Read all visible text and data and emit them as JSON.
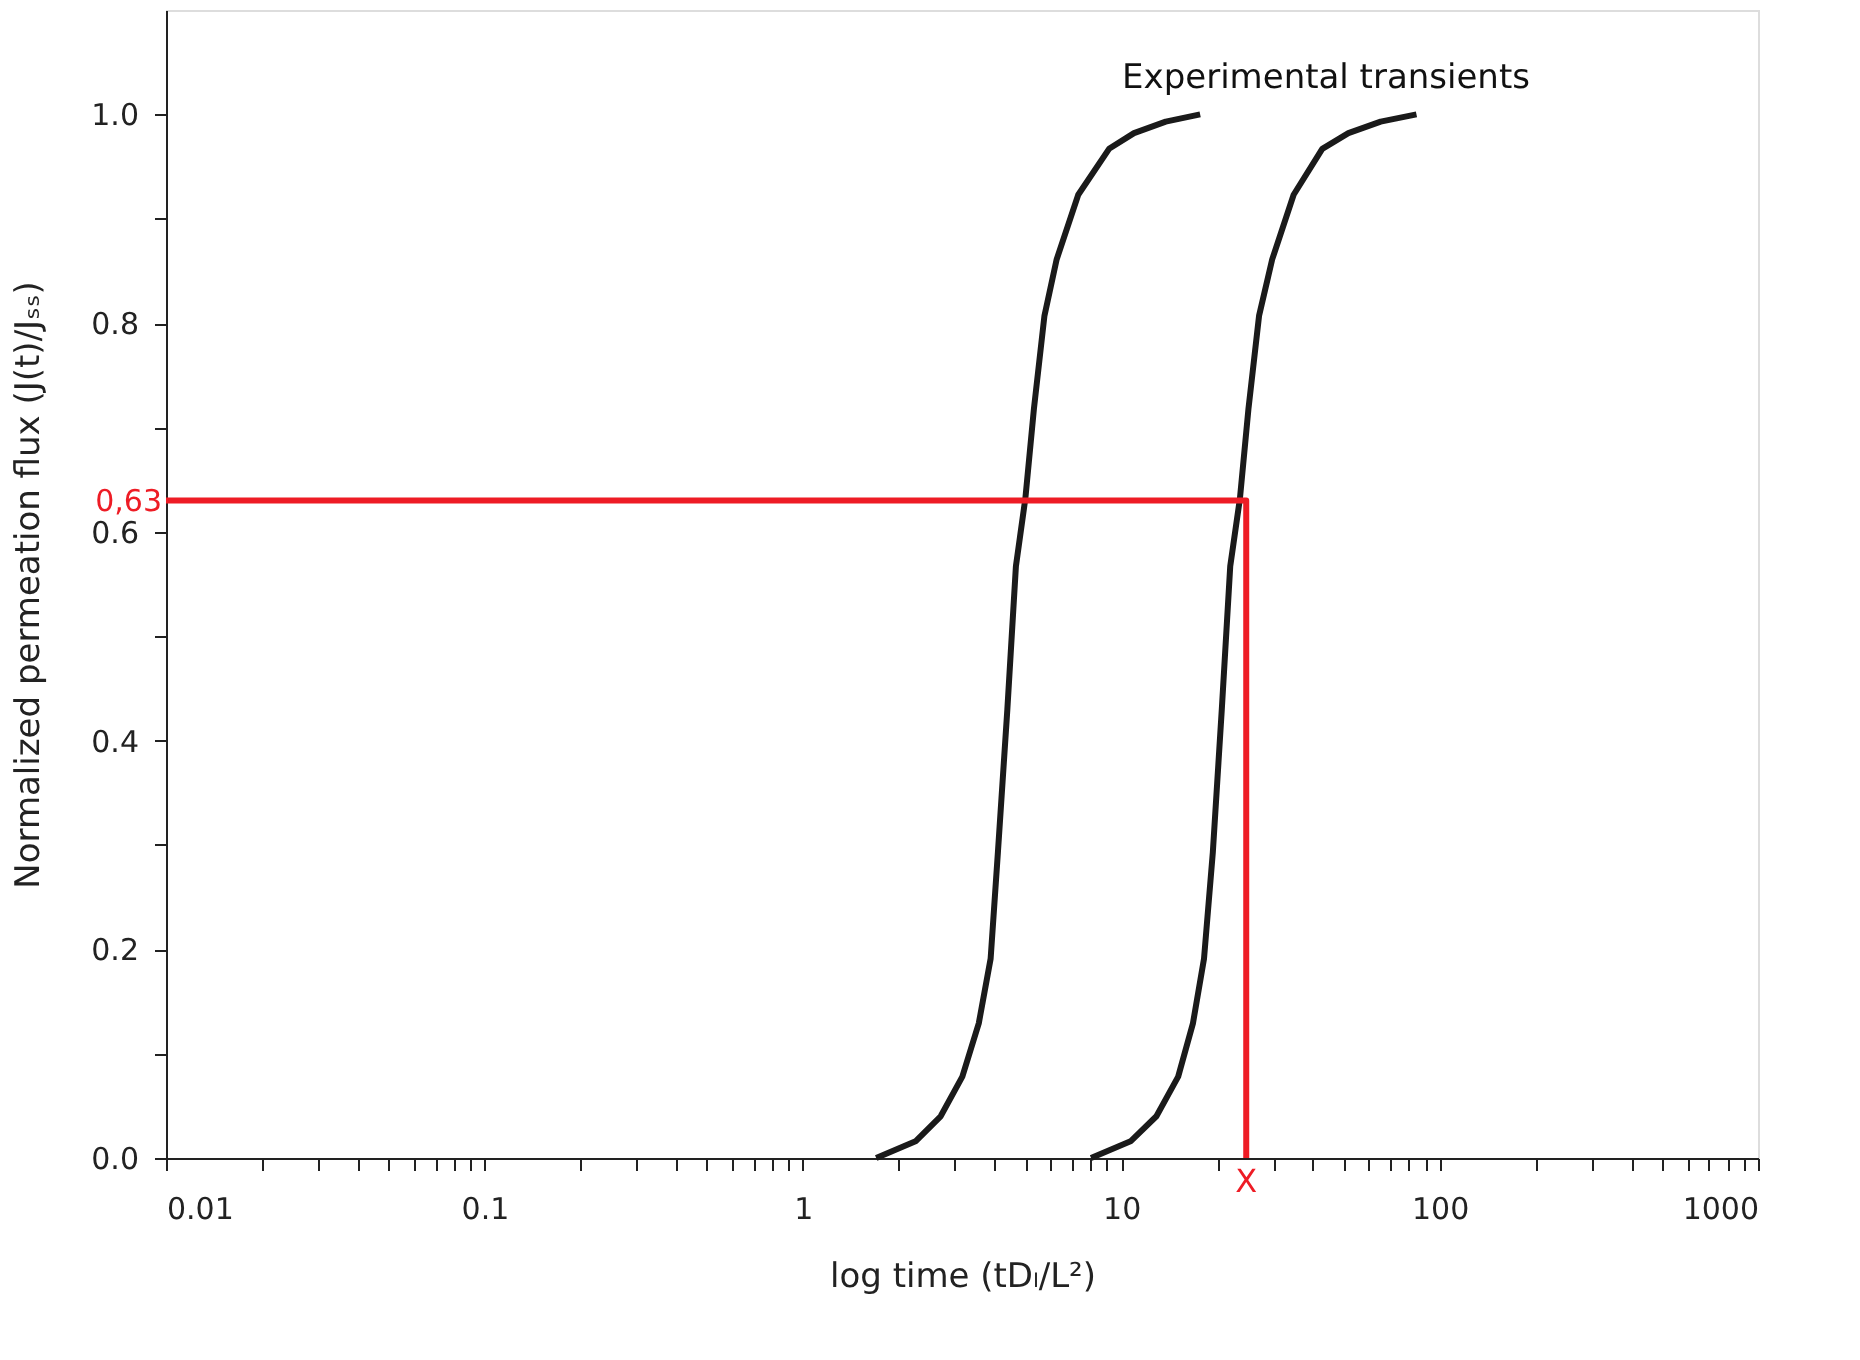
{
  "chart_data": {
    "type": "line",
    "xlabel": "log time (tDₗ/L²)",
    "ylabel": "Normalized permeation flux (J(t)/Jₛₛ)",
    "log": "x",
    "xlim": [
      0.01,
      1000
    ],
    "ylim": [
      0,
      1.1
    ],
    "xticks": [
      {
        "value": 0.01,
        "label": "0.01"
      },
      {
        "value": 0.02,
        "label": null
      },
      {
        "value": 0.03,
        "label": null
      },
      {
        "value": 0.04,
        "label": null
      },
      {
        "value": 0.05,
        "label": null
      },
      {
        "value": 0.06,
        "label": null
      },
      {
        "value": 0.07,
        "label": null
      },
      {
        "value": 0.08,
        "label": null
      },
      {
        "value": 0.09,
        "label": null
      },
      {
        "value": 0.1,
        "label": "0.1"
      },
      {
        "value": 0.2,
        "label": null
      },
      {
        "value": 0.3,
        "label": null
      },
      {
        "value": 0.4,
        "label": null
      },
      {
        "value": 0.5,
        "label": null
      },
      {
        "value": 0.6,
        "label": null
      },
      {
        "value": 0.7,
        "label": null
      },
      {
        "value": 0.8,
        "label": null
      },
      {
        "value": 0.9,
        "label": null
      },
      1,
      {
        "value": 2,
        "label": null
      },
      {
        "value": 3,
        "label": null
      },
      {
        "value": 4,
        "label": null
      },
      {
        "value": 5,
        "label": null
      },
      {
        "value": 6,
        "label": null
      },
      {
        "value": 7,
        "label": null
      },
      {
        "value": 8,
        "label": null
      },
      {
        "value": 9,
        "label": null
      },
      10,
      {
        "value": 20,
        "label": null
      },
      {
        "value": 30,
        "label": null
      },
      {
        "value": 40,
        "label": null
      },
      {
        "value": 50,
        "label": null
      },
      {
        "value": 60,
        "label": null
      },
      {
        "value": 70,
        "label": null
      },
      {
        "value": 80,
        "label": null
      },
      {
        "value": 90,
        "label": null
      },
      100,
      {
        "value": 200,
        "label": null
      },
      {
        "value": 300,
        "label": null
      },
      {
        "value": 400,
        "label": null
      },
      {
        "value": 500,
        "label": null
      },
      {
        "value": 600,
        "label": null
      },
      {
        "value": 700,
        "label": null
      },
      {
        "value": 800,
        "label": null
      },
      {
        "value": 900,
        "label": null
      },
      1000
    ],
    "yticks": [
      {
        "value": 0,
        "label": "0.0"
      },
      {
        "value": 0.1,
        "label": null
      },
      {
        "value": 0.2,
        "label": "0.2"
      },
      {
        "value": 0.3,
        "label": null
      },
      {
        "value": 0.4,
        "label": "0.4"
      },
      {
        "value": 0.5,
        "label": null
      },
      {
        "value": 0.6,
        "label": "0.6"
      },
      {
        "value": 0.7,
        "label": null
      },
      {
        "value": 0.8,
        "label": "0.8"
      },
      {
        "value": 0.9,
        "label": null
      },
      {
        "value": 1.0,
        "label": "1.0"
      }
    ],
    "grid": false,
    "legend": false,
    "marker": "none",
    "line_style": "solid",
    "series": [
      {
        "color": "#1a1a1a",
        "x": [
          1.7,
          2.26,
          2.71,
          3.17,
          3.57,
          3.89,
          4.1,
          4.39,
          4.67,
          5.0,
          5.32,
          5.74,
          6.27,
          7.33,
          9.16,
          10.97,
          13.8,
          17.7
        ],
        "values": [
          0.0,
          0.016,
          0.04,
          0.078,
          0.129,
          0.191,
          0.293,
          0.43,
          0.567,
          0.632,
          0.718,
          0.807,
          0.861,
          0.923,
          0.967,
          0.982,
          0.993,
          1.0
        ]
      },
      {
        "color": "#1a1a1a",
        "x": [
          8.04,
          10.7,
          12.9,
          15.1,
          16.8,
          18.2,
          19.4,
          20.7,
          22.0,
          23.6,
          25.1,
          27.1,
          29.8,
          34.8,
          42.8,
          51.7,
          65.3,
          84.6
        ],
        "values": [
          0.0,
          0.016,
          0.04,
          0.078,
          0.129,
          0.191,
          0.293,
          0.43,
          0.567,
          0.632,
          0.718,
          0.807,
          0.861,
          0.923,
          0.967,
          0.982,
          0.993,
          1.0
        ]
      },
      {
        "color": "#ee1c25",
        "x": [
          0.01,
          24.7,
          24.7
        ],
        "values": [
          0.63,
          0.63,
          0.0
        ]
      }
    ],
    "annotations": [
      "Experimental transients",
      {
        "text": "0,63",
        "x": 0.01,
        "y": 0.63
      },
      {
        "text": "X",
        "x": 24.7,
        "y": 0
      }
    ]
  }
}
